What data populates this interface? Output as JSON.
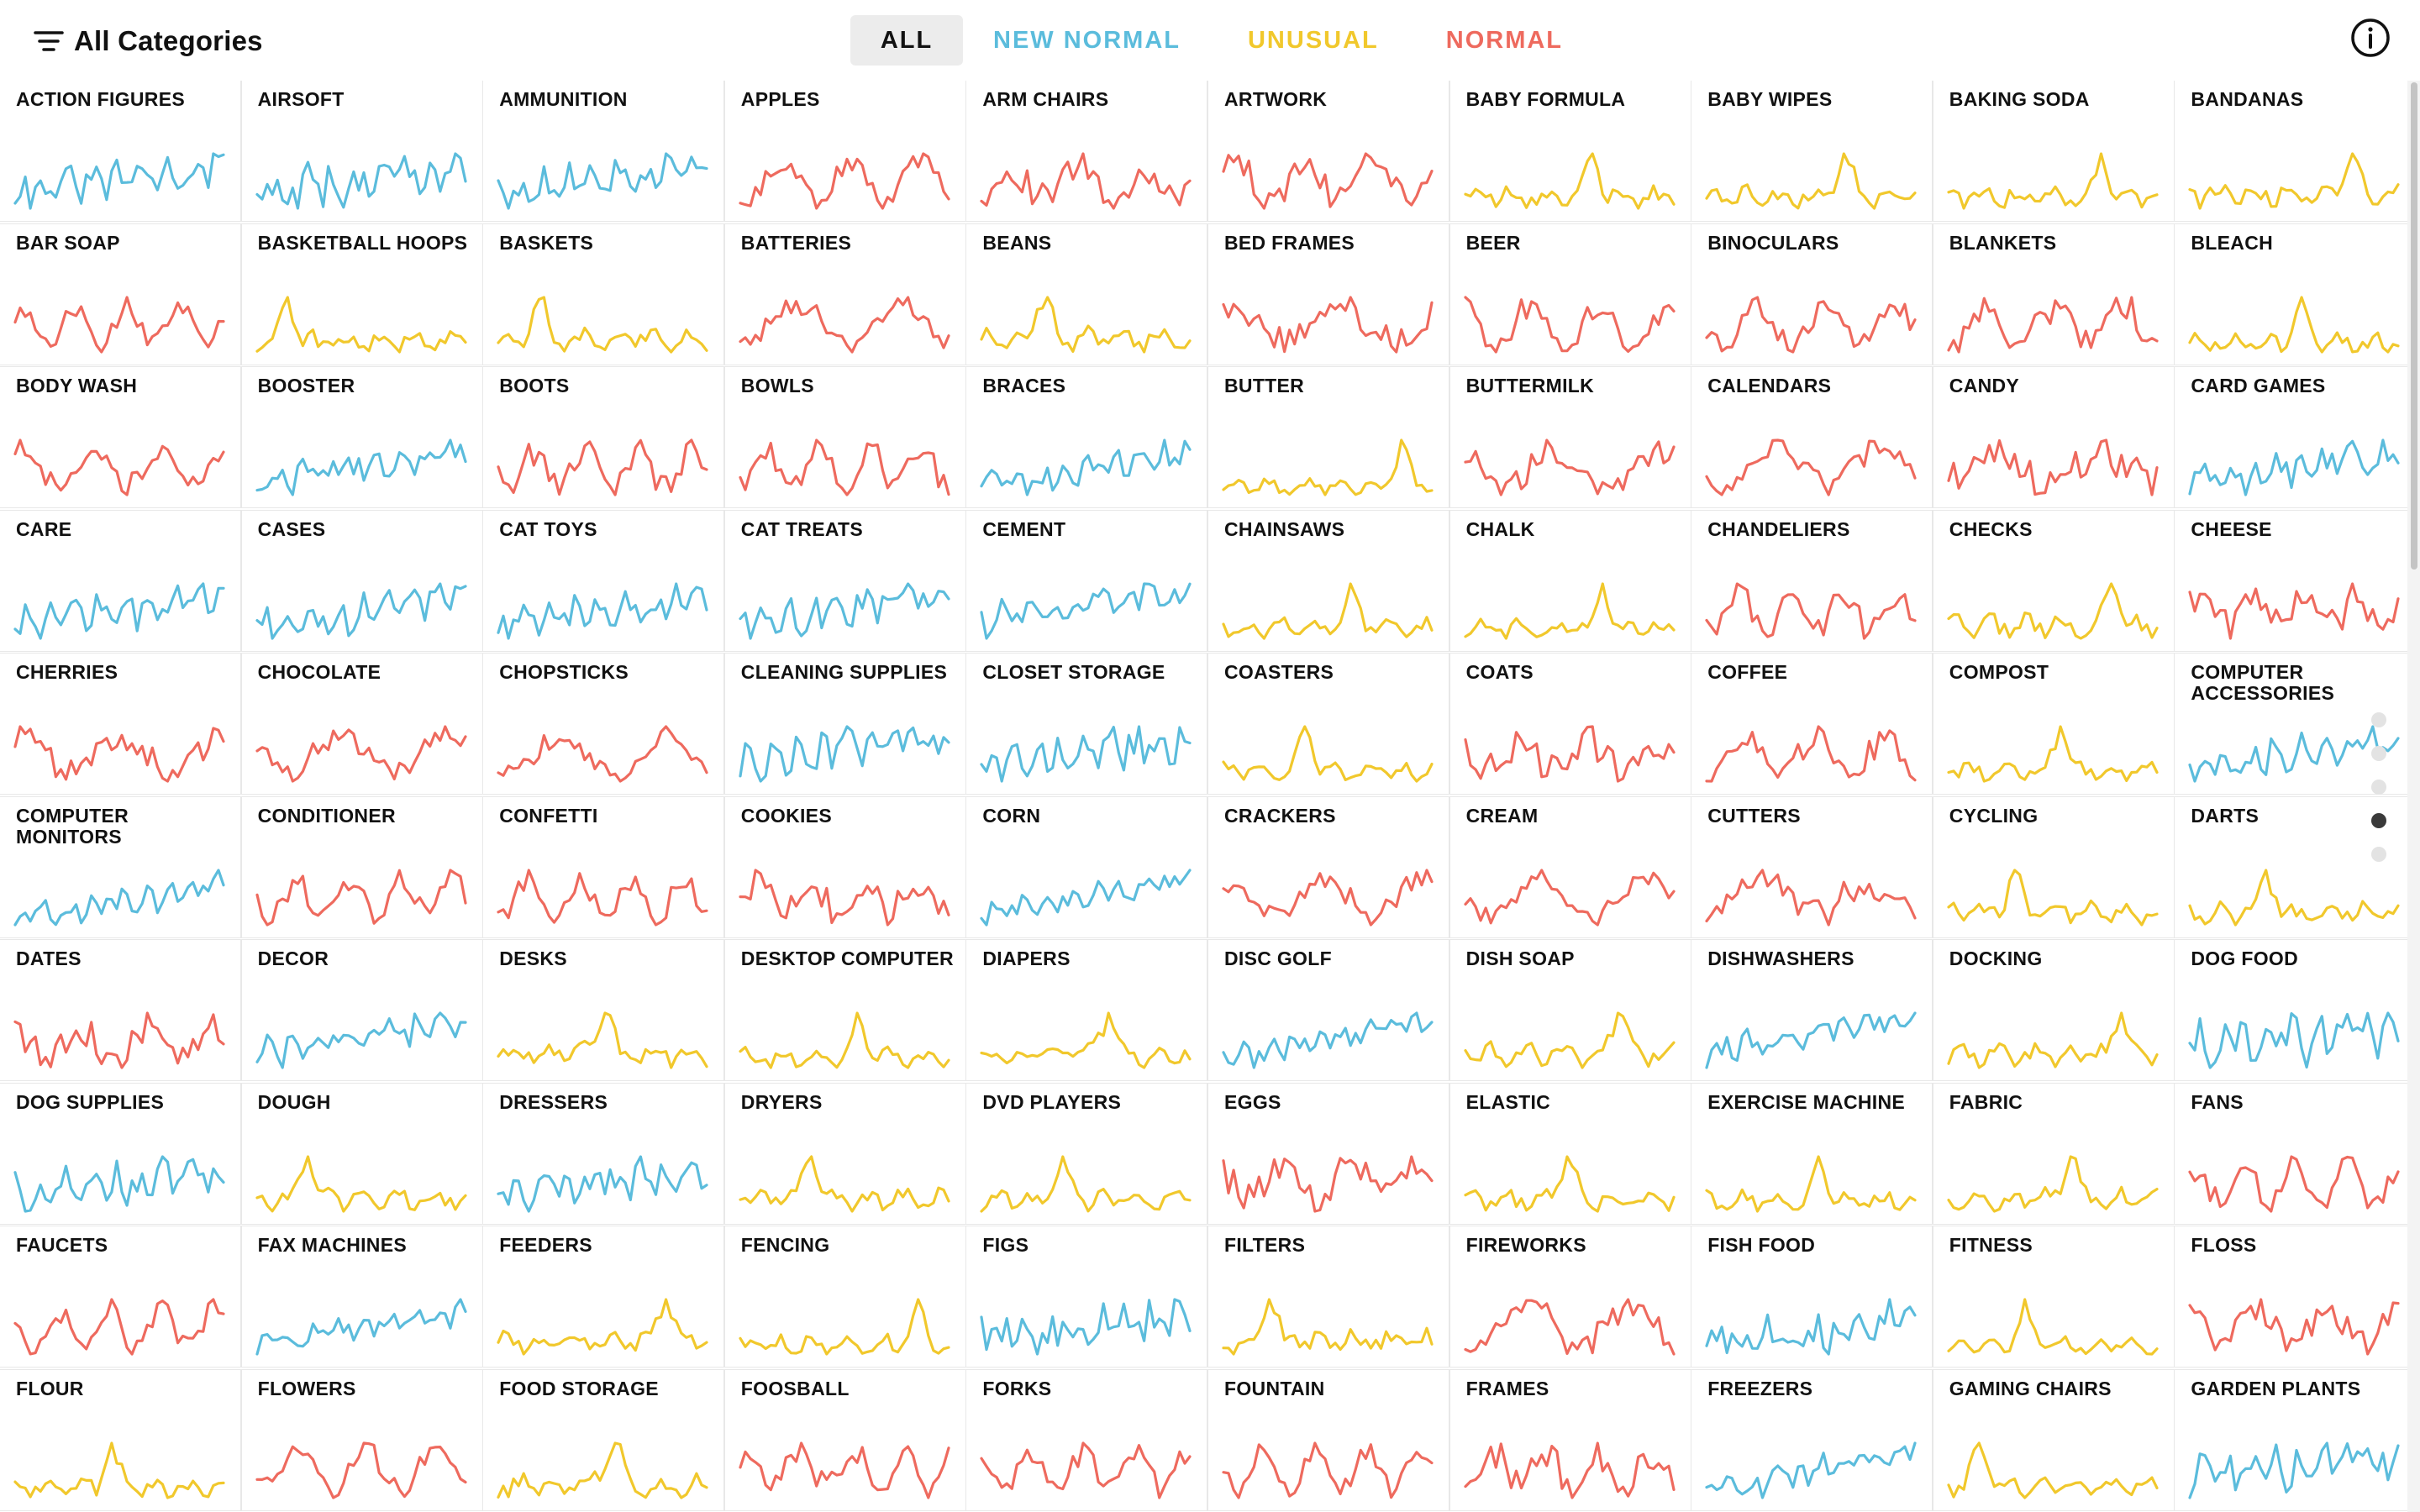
{
  "header": {
    "category_label": "All Categories",
    "filter_icon": "filter-lines-icon",
    "info_icon": "info-icon"
  },
  "filters": [
    {
      "label": "ALL",
      "key": "all",
      "color": "#111111"
    },
    {
      "label": "NEW NORMAL",
      "key": "new_normal",
      "color": "#5bbcdc"
    },
    {
      "label": "UNUSUAL",
      "key": "unusual",
      "color": "#f1c82c"
    },
    {
      "label": "NORMAL",
      "key": "normal",
      "color": "#ee6a5e"
    }
  ],
  "colors": {
    "new_normal": "#5bbcdc",
    "unusual": "#f1c82c",
    "normal": "#ee6a5e"
  },
  "categories": [
    {
      "name": "Action Figures",
      "type": "new_normal"
    },
    {
      "name": "Airsoft",
      "type": "new_normal"
    },
    {
      "name": "Ammunition",
      "type": "new_normal"
    },
    {
      "name": "Apples",
      "type": "normal"
    },
    {
      "name": "Arm Chairs",
      "type": "normal"
    },
    {
      "name": "Artwork",
      "type": "normal"
    },
    {
      "name": "Baby Formula",
      "type": "unusual"
    },
    {
      "name": "Baby Wipes",
      "type": "unusual"
    },
    {
      "name": "Baking Soda",
      "type": "unusual"
    },
    {
      "name": "Bandanas",
      "type": "unusual"
    },
    {
      "name": "Bar Soap",
      "type": "normal"
    },
    {
      "name": "Basketball Hoops",
      "type": "unusual"
    },
    {
      "name": "Baskets",
      "type": "unusual"
    },
    {
      "name": "Batteries",
      "type": "normal"
    },
    {
      "name": "Beans",
      "type": "unusual"
    },
    {
      "name": "Bed Frames",
      "type": "normal"
    },
    {
      "name": "Beer",
      "type": "normal"
    },
    {
      "name": "Binoculars",
      "type": "normal"
    },
    {
      "name": "Blankets",
      "type": "normal"
    },
    {
      "name": "Bleach",
      "type": "unusual"
    },
    {
      "name": "Body Wash",
      "type": "normal"
    },
    {
      "name": "Booster",
      "type": "new_normal"
    },
    {
      "name": "Boots",
      "type": "normal"
    },
    {
      "name": "Bowls",
      "type": "normal"
    },
    {
      "name": "Braces",
      "type": "new_normal"
    },
    {
      "name": "Butter",
      "type": "unusual"
    },
    {
      "name": "Buttermilk",
      "type": "normal"
    },
    {
      "name": "Calendars",
      "type": "normal"
    },
    {
      "name": "Candy",
      "type": "normal"
    },
    {
      "name": "Card Games",
      "type": "new_normal"
    },
    {
      "name": "Care",
      "type": "new_normal"
    },
    {
      "name": "Cases",
      "type": "new_normal"
    },
    {
      "name": "Cat Toys",
      "type": "new_normal"
    },
    {
      "name": "Cat Treats",
      "type": "new_normal"
    },
    {
      "name": "Cement",
      "type": "new_normal"
    },
    {
      "name": "Chainsaws",
      "type": "unusual"
    },
    {
      "name": "Chalk",
      "type": "unusual"
    },
    {
      "name": "Chandeliers",
      "type": "normal"
    },
    {
      "name": "Checks",
      "type": "unusual"
    },
    {
      "name": "Cheese",
      "type": "normal"
    },
    {
      "name": "Cherries",
      "type": "normal"
    },
    {
      "name": "Chocolate",
      "type": "normal"
    },
    {
      "name": "Chopsticks",
      "type": "normal"
    },
    {
      "name": "Cleaning Supplies",
      "type": "new_normal"
    },
    {
      "name": "Closet Storage",
      "type": "new_normal"
    },
    {
      "name": "Coasters",
      "type": "unusual"
    },
    {
      "name": "Coats",
      "type": "normal"
    },
    {
      "name": "Coffee",
      "type": "normal"
    },
    {
      "name": "Compost",
      "type": "unusual"
    },
    {
      "name": "Computer Accessories",
      "type": "new_normal"
    },
    {
      "name": "Computer Monitors",
      "type": "new_normal"
    },
    {
      "name": "Conditioner",
      "type": "normal"
    },
    {
      "name": "Confetti",
      "type": "normal"
    },
    {
      "name": "Cookies",
      "type": "normal"
    },
    {
      "name": "Corn",
      "type": "new_normal"
    },
    {
      "name": "Crackers",
      "type": "normal"
    },
    {
      "name": "Cream",
      "type": "normal"
    },
    {
      "name": "Cutters",
      "type": "normal"
    },
    {
      "name": "Cycling",
      "type": "unusual"
    },
    {
      "name": "Darts",
      "type": "unusual"
    },
    {
      "name": "Dates",
      "type": "normal"
    },
    {
      "name": "Decor",
      "type": "new_normal"
    },
    {
      "name": "Desks",
      "type": "unusual"
    },
    {
      "name": "Desktop Computer",
      "type": "unusual"
    },
    {
      "name": "Diapers",
      "type": "unusual"
    },
    {
      "name": "Disc Golf",
      "type": "new_normal"
    },
    {
      "name": "Dish Soap",
      "type": "unusual"
    },
    {
      "name": "Dishwashers",
      "type": "new_normal"
    },
    {
      "name": "Docking",
      "type": "unusual"
    },
    {
      "name": "Dog Food",
      "type": "new_normal"
    },
    {
      "name": "Dog Supplies",
      "type": "new_normal"
    },
    {
      "name": "Dough",
      "type": "unusual"
    },
    {
      "name": "Dressers",
      "type": "new_normal"
    },
    {
      "name": "Dryers",
      "type": "unusual"
    },
    {
      "name": "DVD Players",
      "type": "unusual"
    },
    {
      "name": "Eggs",
      "type": "normal"
    },
    {
      "name": "Elastic",
      "type": "unusual"
    },
    {
      "name": "Exercise Machine",
      "type": "unusual"
    },
    {
      "name": "Fabric",
      "type": "unusual"
    },
    {
      "name": "Fans",
      "type": "normal"
    },
    {
      "name": "Faucets",
      "type": "normal"
    },
    {
      "name": "Fax Machines",
      "type": "new_normal"
    },
    {
      "name": "Feeders",
      "type": "unusual"
    },
    {
      "name": "Fencing",
      "type": "unusual"
    },
    {
      "name": "Figs",
      "type": "new_normal"
    },
    {
      "name": "Filters",
      "type": "unusual"
    },
    {
      "name": "Fireworks",
      "type": "normal"
    },
    {
      "name": "Fish Food",
      "type": "new_normal"
    },
    {
      "name": "Fitness",
      "type": "unusual"
    },
    {
      "name": "Floss",
      "type": "normal"
    },
    {
      "name": "Flour",
      "type": "unusual"
    },
    {
      "name": "Flowers",
      "type": "normal"
    },
    {
      "name": "Food Storage",
      "type": "unusual"
    },
    {
      "name": "Foosball",
      "type": "normal"
    },
    {
      "name": "Forks",
      "type": "normal"
    },
    {
      "name": "Fountain",
      "type": "normal"
    },
    {
      "name": "Frames",
      "type": "normal"
    },
    {
      "name": "Freezers",
      "type": "new_normal"
    },
    {
      "name": "Gaming Chairs",
      "type": "unusual"
    },
    {
      "name": "Garden Plants",
      "type": "new_normal"
    }
  ],
  "pager": {
    "count": 5,
    "active": 3
  }
}
